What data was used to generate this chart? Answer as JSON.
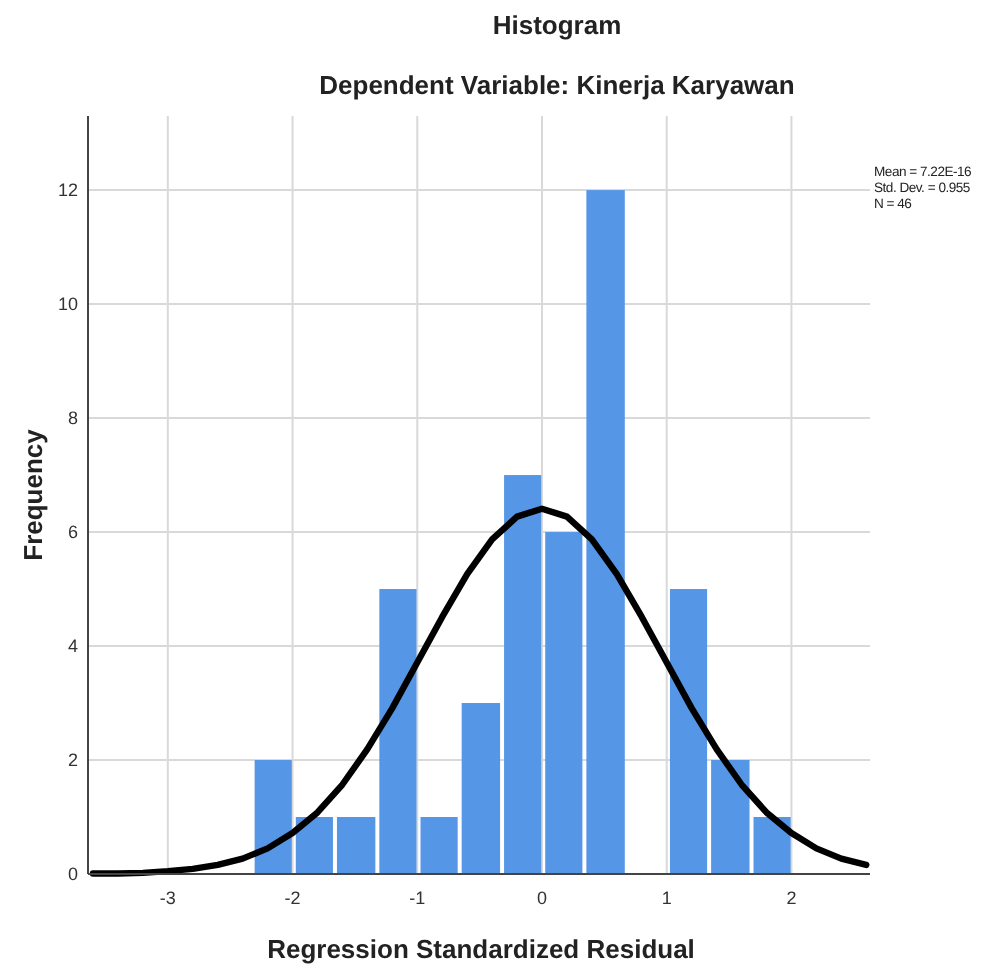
{
  "chart_data": {
    "type": "histogram",
    "title": "Histogram",
    "subtitle": "Dependent Variable: Kinerja Karyawan",
    "xlabel": "Regression Standardized Residual",
    "ylabel": "Frequency",
    "bins": [
      -2.32,
      -1.99,
      -1.66,
      -1.32,
      -0.99,
      -0.66,
      -0.32,
      0.01,
      0.34,
      0.68,
      1.01,
      1.34,
      1.68,
      2.01
    ],
    "values": [
      2,
      1,
      1,
      5,
      1,
      3,
      7,
      6,
      12,
      0,
      5,
      2,
      1
    ],
    "color": "#5596e6",
    "series": [
      {
        "type": "line",
        "color": "#000000",
        "x": [
          -3.6,
          -3.4,
          -3.2,
          -3.0,
          -2.8,
          -2.6,
          -2.4,
          -2.2,
          -2.0,
          -1.8,
          -1.6,
          -1.4,
          -1.2,
          -1.0,
          -0.8,
          -0.6,
          -0.4,
          -0.2,
          0,
          0.2,
          0.4,
          0.6,
          0.8,
          1.0,
          1.2,
          1.4,
          1.6,
          1.8,
          2.0,
          2.2,
          2.4,
          2.6
        ],
        "values": [
          0.01,
          0.01,
          0.02,
          0.05,
          0.09,
          0.16,
          0.27,
          0.45,
          0.72,
          1.08,
          1.57,
          2.19,
          2.91,
          3.71,
          4.51,
          5.26,
          5.87,
          6.27,
          6.41,
          6.27,
          5.87,
          5.26,
          4.51,
          3.71,
          2.91,
          2.19,
          1.57,
          1.08,
          0.72,
          0.45,
          0.27,
          0.16
        ]
      }
    ],
    "xlim": [
      -3.64,
      2.63
    ],
    "ylim": [
      0,
      13.3
    ],
    "xticks": [
      -3,
      -2,
      -1,
      0,
      1,
      2
    ],
    "yticks": [
      0,
      2,
      4,
      6,
      8,
      10,
      12
    ],
    "grid": true,
    "annotations": [
      "Mean = 7.22E-16",
      "Std. Dev. = 0.955",
      "N = 46"
    ]
  }
}
